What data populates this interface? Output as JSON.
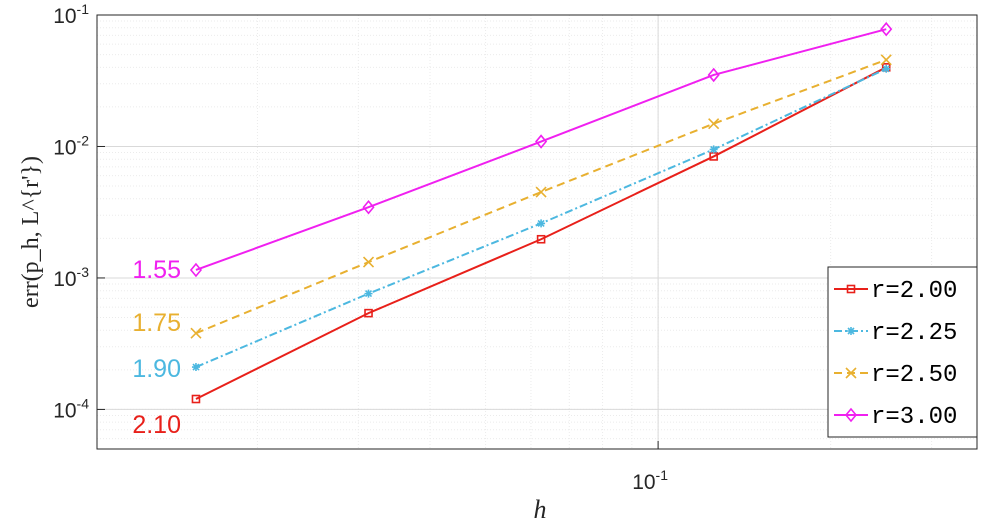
{
  "chart_data": {
    "type": "line",
    "xlabel": "h",
    "ylabel": "err(p_h, L^{r'})",
    "x": [
      0.015625,
      0.03125,
      0.0625,
      0.125,
      0.25
    ],
    "xlim": [
      0.0105,
      0.36
    ],
    "ylim": [
      5e-05,
      0.1
    ],
    "xscale": "log",
    "yscale": "log",
    "grid": true,
    "legend": "lower right",
    "xticks": [
      {
        "value": 0.1,
        "label": "10",
        "exponent": "-1"
      }
    ],
    "yticks": [
      {
        "value": 0.0001,
        "label": "10",
        "exponent": "-4"
      },
      {
        "value": 0.001,
        "label": "10",
        "exponent": "-3"
      },
      {
        "value": 0.01,
        "label": "10",
        "exponent": "-2"
      },
      {
        "value": 0.1,
        "label": "10",
        "exponent": "-1"
      }
    ],
    "series": [
      {
        "name": "r=2.00",
        "color": "#e8201a",
        "marker": "square",
        "dash": "",
        "values": [
          0.00012,
          0.00054,
          0.00197,
          0.0084,
          0.04
        ],
        "annotation": "2.10"
      },
      {
        "name": "r=2.25",
        "color": "#4cb8e0",
        "marker": "star",
        "dash": "8 3 2 3",
        "values": [
          0.00021,
          0.00076,
          0.0026,
          0.0095,
          0.039
        ],
        "annotation": "1.90"
      },
      {
        "name": "r=2.50",
        "color": "#e8b030",
        "marker": "cross",
        "dash": "8 5",
        "values": [
          0.00038,
          0.00132,
          0.0045,
          0.0149,
          0.0456
        ],
        "annotation": "1.75"
      },
      {
        "name": "r=3.00",
        "color": "#f020f0",
        "marker": "diamond",
        "dash": "",
        "values": [
          0.00115,
          0.00345,
          0.0109,
          0.035,
          0.078
        ],
        "annotation": "1.55"
      }
    ]
  }
}
